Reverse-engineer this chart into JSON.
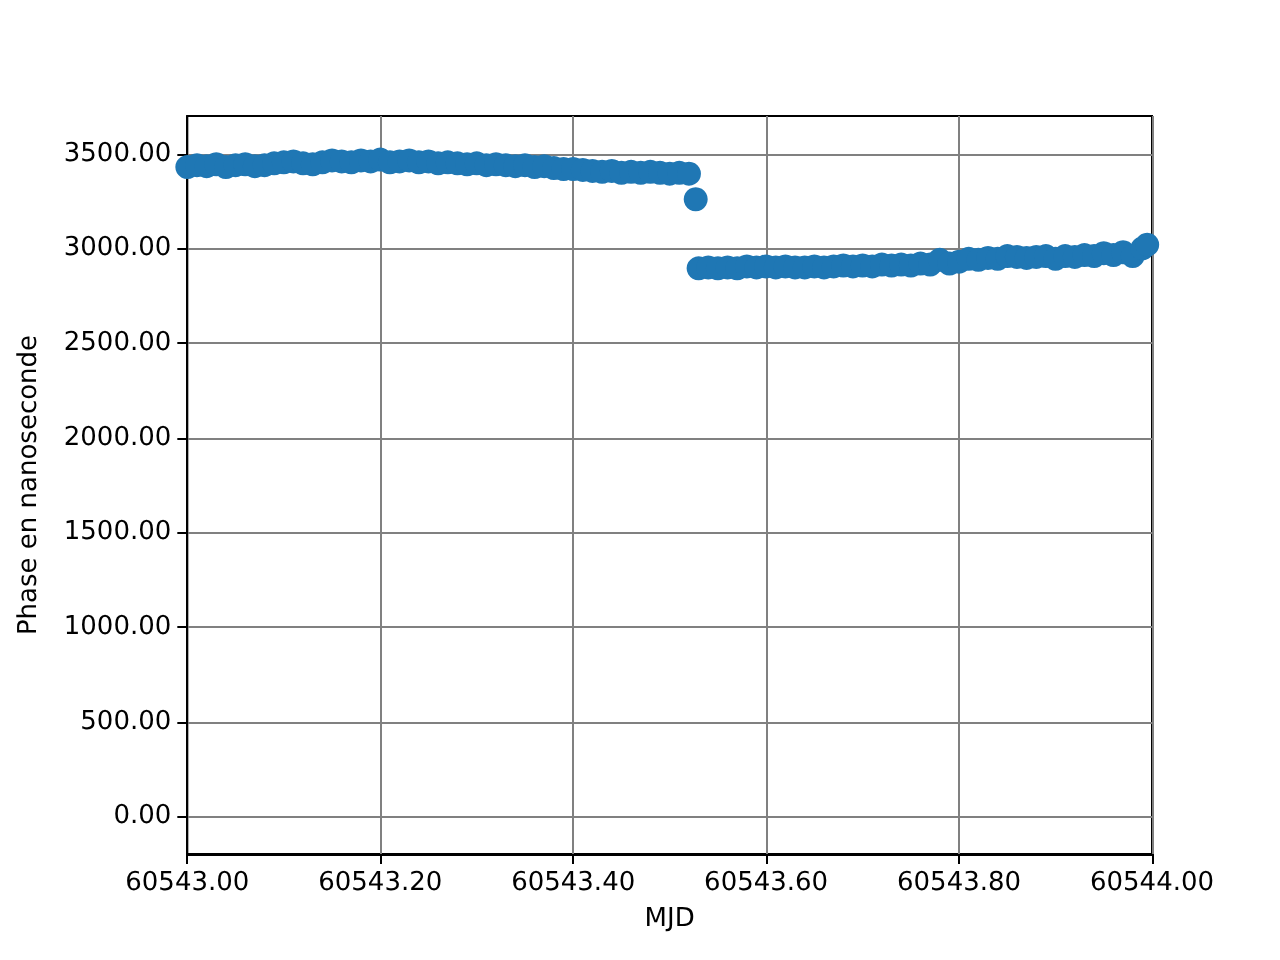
{
  "chart_data": {
    "type": "scatter",
    "xlabel": "MJD",
    "ylabel": "Phase en nanoseconde",
    "color": "#1f77b4",
    "marker": "circle",
    "grid": true,
    "x": [
      60543.0,
      60543.01,
      60543.02,
      60543.03,
      60543.04,
      60543.05,
      60543.06,
      60543.07,
      60543.08,
      60543.09,
      60543.1,
      60543.11,
      60543.12,
      60543.13,
      60543.14,
      60543.15,
      60543.16,
      60543.17,
      60543.18,
      60543.19,
      60543.2,
      60543.21,
      60543.22,
      60543.23,
      60543.24,
      60543.25,
      60543.26,
      60543.27,
      60543.28,
      60543.29,
      60543.3,
      60543.31,
      60543.32,
      60543.33,
      60543.34,
      60543.35,
      60543.36,
      60543.37,
      60543.38,
      60543.39,
      60543.4,
      60543.41,
      60543.42,
      60543.43,
      60543.44,
      60543.45,
      60543.46,
      60543.47,
      60543.48,
      60543.49,
      60543.5,
      60543.51,
      60543.52,
      60543.527,
      60543.53,
      60543.54,
      60543.55,
      60543.56,
      60543.57,
      60543.58,
      60543.59,
      60543.6,
      60543.61,
      60543.62,
      60543.63,
      60543.64,
      60543.65,
      60543.66,
      60543.67,
      60543.68,
      60543.69,
      60543.7,
      60543.71,
      60543.72,
      60543.73,
      60543.74,
      60543.75,
      60543.76,
      60543.77,
      60543.78,
      60543.79,
      60543.8,
      60543.81,
      60543.82,
      60543.83,
      60543.84,
      60543.85,
      60543.86,
      60543.87,
      60543.88,
      60543.89,
      60543.9,
      60543.91,
      60543.92,
      60543.93,
      60543.94,
      60543.95,
      60543.96,
      60543.97,
      60543.98,
      60543.99,
      60543.995
    ],
    "values": [
      3430,
      3440,
      3435,
      3445,
      3430,
      3440,
      3445,
      3435,
      3440,
      3450,
      3455,
      3460,
      3450,
      3445,
      3455,
      3465,
      3460,
      3455,
      3465,
      3460,
      3470,
      3455,
      3460,
      3465,
      3455,
      3460,
      3450,
      3455,
      3450,
      3445,
      3450,
      3440,
      3445,
      3440,
      3435,
      3440,
      3430,
      3435,
      3425,
      3420,
      3420,
      3415,
      3410,
      3405,
      3410,
      3400,
      3405,
      3400,
      3405,
      3400,
      3395,
      3400,
      3395,
      3260,
      2895,
      2900,
      2895,
      2900,
      2895,
      2905,
      2900,
      2905,
      2900,
      2905,
      2900,
      2900,
      2905,
      2900,
      2905,
      2910,
      2905,
      2910,
      2905,
      2915,
      2910,
      2915,
      2910,
      2920,
      2915,
      2940,
      2920,
      2930,
      2945,
      2940,
      2950,
      2945,
      2960,
      2955,
      2950,
      2955,
      2960,
      2945,
      2960,
      2955,
      2965,
      2960,
      2975,
      2965,
      2980,
      2960,
      3000,
      3020
    ],
    "xlim": [
      60543,
      60544
    ],
    "xticks": [
      {
        "value": 60543,
        "label": "60543.00"
      },
      {
        "value": 60543.2,
        "label": "60543.20"
      },
      {
        "value": 60543.4,
        "label": "60543.40"
      },
      {
        "value": 60543.6,
        "label": "60543.60"
      },
      {
        "value": 60543.8,
        "label": "60543.80"
      },
      {
        "value": 60544,
        "label": "60544.00"
      }
    ],
    "ylim": [
      -200,
      3700
    ],
    "yticks": [
      {
        "value": 0,
        "label": "0.00"
      },
      {
        "value": 500,
        "label": "500.00"
      },
      {
        "value": 1000,
        "label": "1000.00"
      },
      {
        "value": 1500,
        "label": "1500.00"
      },
      {
        "value": 2000,
        "label": "2000.00"
      },
      {
        "value": 2500,
        "label": "2500.00"
      },
      {
        "value": 3000,
        "label": "3000.00"
      },
      {
        "value": 3500,
        "label": "3500.00"
      }
    ]
  }
}
